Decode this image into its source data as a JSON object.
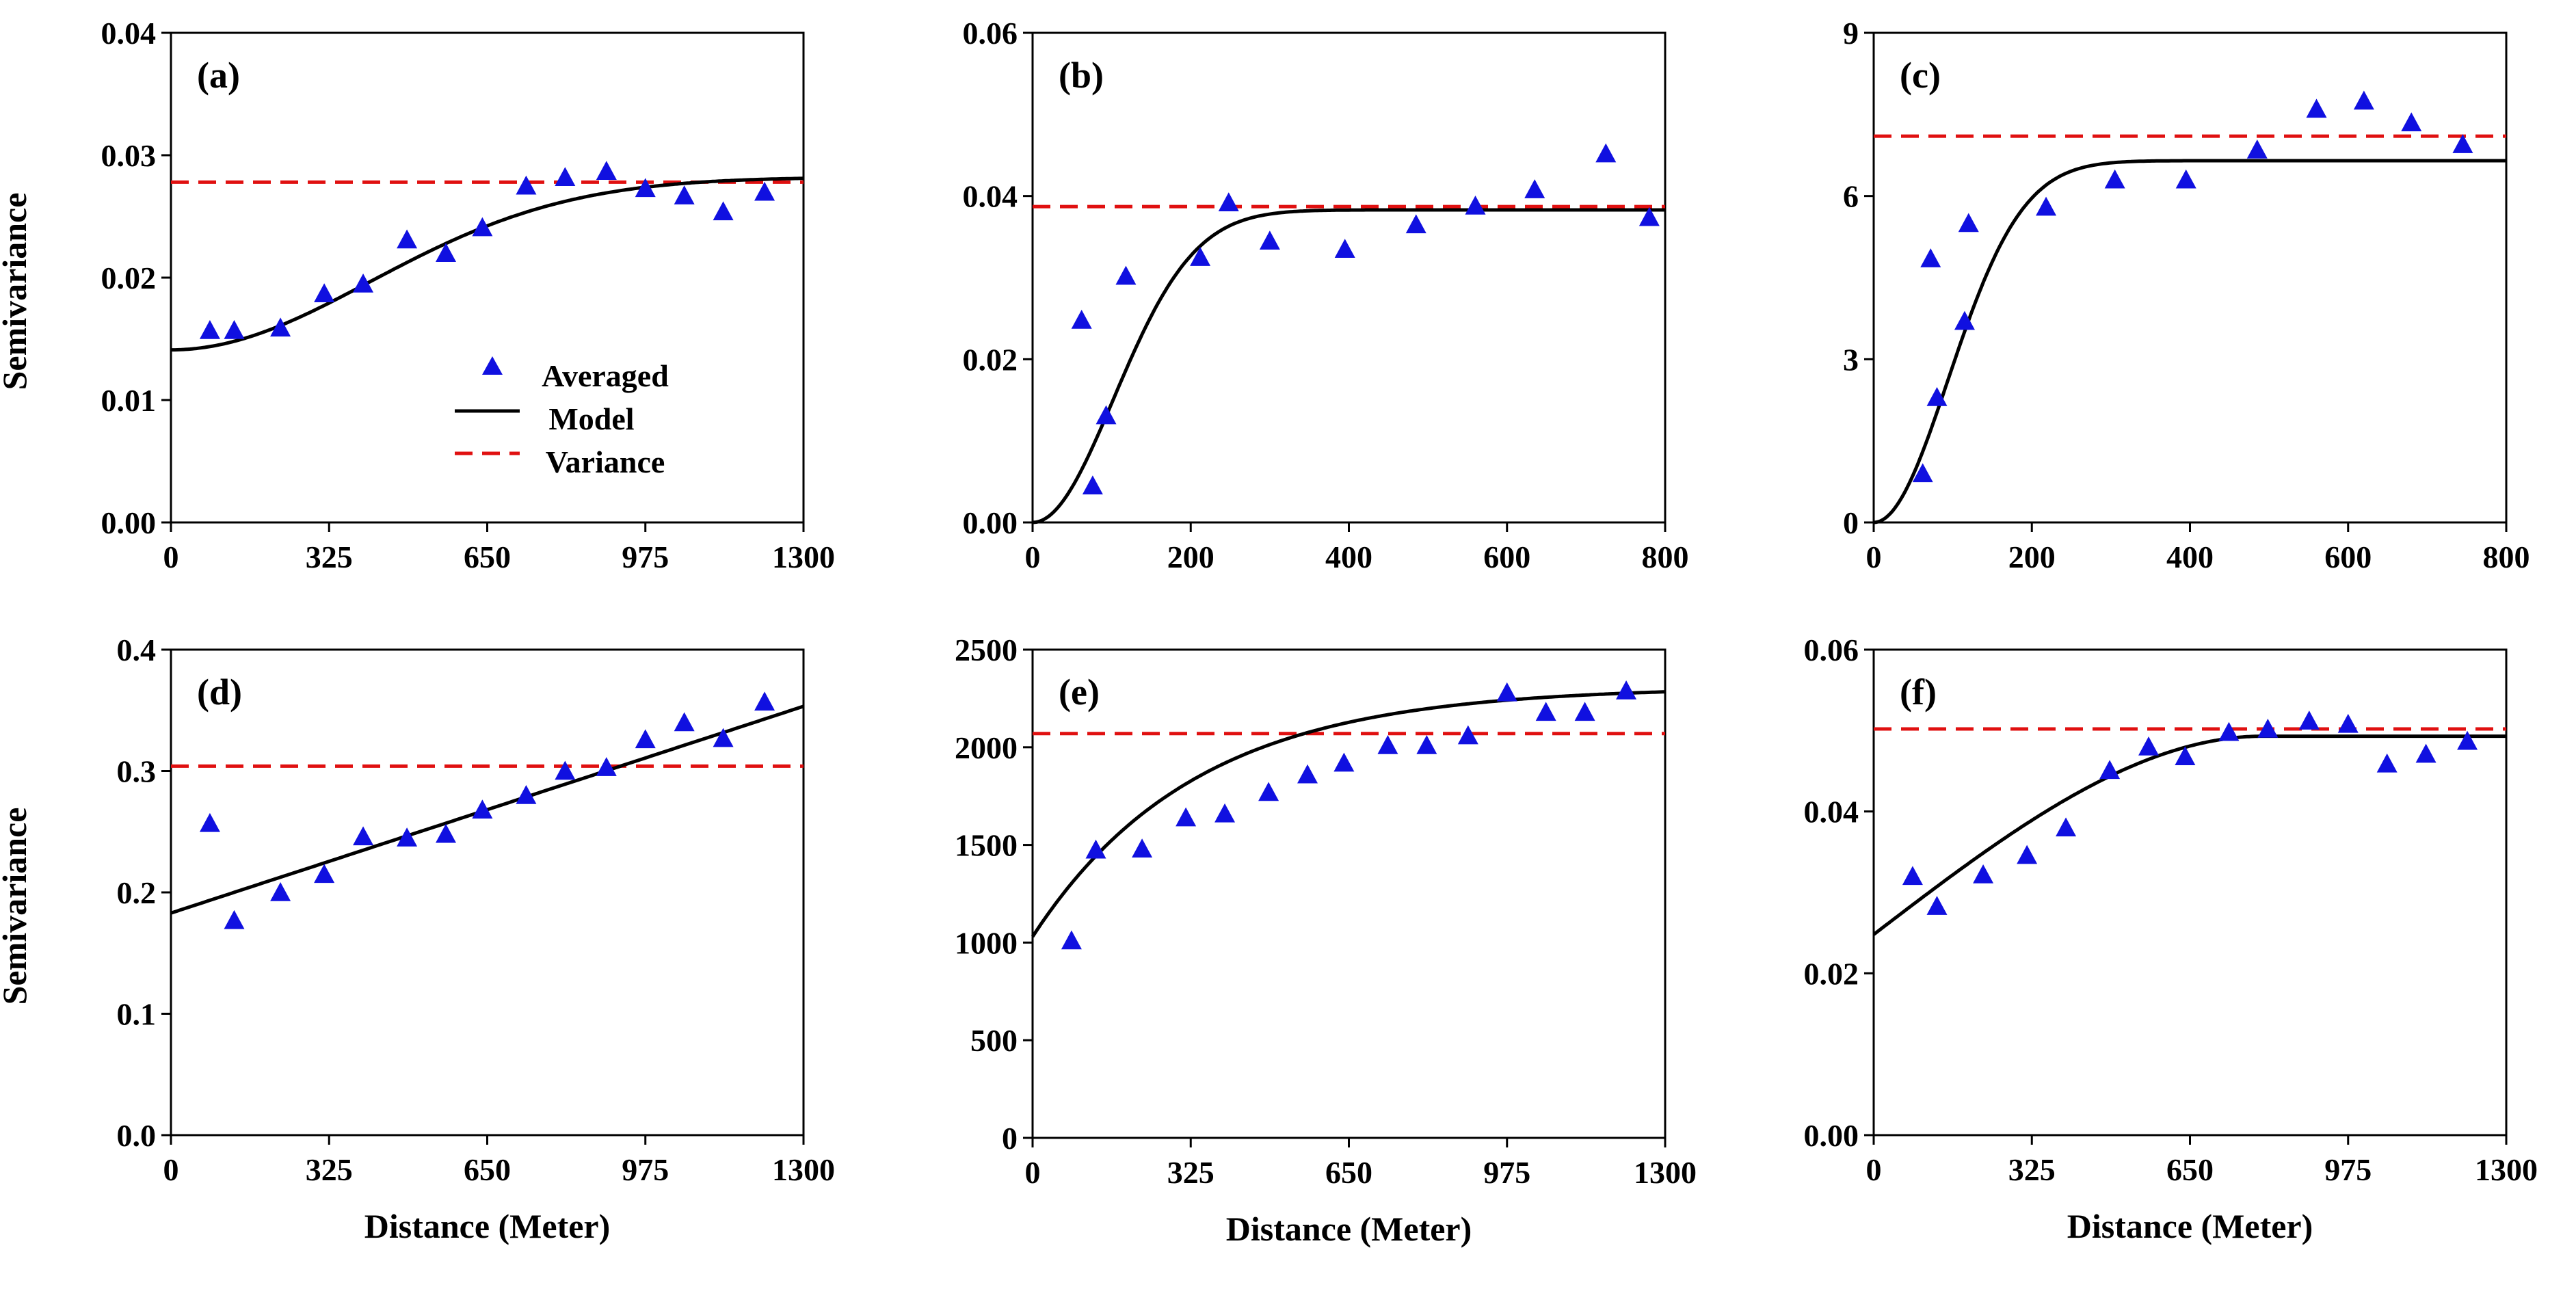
{
  "figure": {
    "colors": {
      "points": "#1010e0",
      "model": "#000000",
      "variance": "#e01010"
    },
    "legend": {
      "averaged": "Averaged",
      "model": "Model",
      "variance": "Variance"
    }
  },
  "chart_data": [
    {
      "type": "scatter",
      "label": "(a)",
      "xlabel": "",
      "ylabel": "Semivariance",
      "xlim": [
        0,
        1300
      ],
      "ylim": [
        0,
        0.04
      ],
      "xticks": [
        0,
        325,
        650,
        975,
        1300
      ],
      "xtick_labels": [
        "0",
        "325",
        "650",
        "975",
        "1300"
      ],
      "yticks": [
        0,
        0.01,
        0.02,
        0.03,
        0.04
      ],
      "ytick_labels": [
        "0.00",
        "0.01",
        "0.02",
        "0.03",
        "0.04"
      ],
      "points": {
        "x": [
          80,
          130,
          225,
          315,
          395,
          485,
          565,
          640,
          730,
          810,
          895,
          975,
          1055,
          1135,
          1220
        ],
        "y": [
          0.0157,
          0.0157,
          0.0159,
          0.0187,
          0.0195,
          0.0231,
          0.022,
          0.0241,
          0.0275,
          0.0282,
          0.0287,
          0.0273,
          0.0267,
          0.0254,
          0.027
        ]
      },
      "model": {
        "form": "gaussian",
        "nugget": 0.0141,
        "sill": 0.0282,
        "range": 1000
      },
      "variance": 0.0278,
      "legend": true
    },
    {
      "type": "scatter",
      "label": "(b)",
      "xlabel": "",
      "ylabel": "",
      "xlim": [
        0,
        800
      ],
      "ylim": [
        0,
        0.06
      ],
      "xticks": [
        0,
        200,
        400,
        600,
        800
      ],
      "xtick_labels": [
        "0",
        "200",
        "400",
        "600",
        "800"
      ],
      "yticks": [
        0,
        0.02,
        0.04,
        0.06
      ],
      "ytick_labels": [
        "0.00",
        "0.02",
        "0.04",
        "0.06"
      ],
      "points": {
        "x": [
          62,
          76,
          93,
          118,
          212,
          248,
          300,
          395,
          485,
          560,
          635,
          725,
          780
        ],
        "y": [
          0.0248,
          0.0045,
          0.0131,
          0.0302,
          0.0325,
          0.0392,
          0.0345,
          0.0335,
          0.0365,
          0.0388,
          0.0408,
          0.0452,
          0.0374
        ]
      },
      "model": {
        "form": "gaussian",
        "nugget": 0,
        "sill": 0.0383,
        "range": 250
      },
      "variance": 0.0387,
      "legend": false
    },
    {
      "type": "scatter",
      "label": "(c)",
      "xlabel": "",
      "ylabel": "",
      "xlim": [
        0,
        800
      ],
      "ylim": [
        0,
        9
      ],
      "xticks": [
        0,
        200,
        400,
        600,
        800
      ],
      "xtick_labels": [
        "0",
        "200",
        "400",
        "600",
        "800"
      ],
      "yticks": [
        0,
        3,
        6,
        9
      ],
      "ytick_labels": [
        "0",
        "3",
        "6",
        "9"
      ],
      "points": {
        "x": [
          62,
          72,
          80,
          115,
          120,
          218,
          305,
          395,
          485,
          560,
          620,
          680,
          745
        ],
        "y": [
          0.9,
          4.85,
          2.3,
          3.7,
          5.5,
          5.8,
          6.3,
          6.3,
          6.85,
          7.6,
          7.75,
          7.35,
          6.95
        ]
      },
      "model": {
        "form": "gaussian",
        "nugget": 0,
        "sill": 6.65,
        "range": 230
      },
      "variance": 7.1,
      "legend": false
    },
    {
      "type": "scatter",
      "label": "(d)",
      "xlabel": "Distance (Meter)",
      "ylabel": "Semivariance",
      "xlim": [
        0,
        1300
      ],
      "ylim": [
        0,
        0.4
      ],
      "xticks": [
        0,
        325,
        650,
        975,
        1300
      ],
      "xtick_labels": [
        "0",
        "325",
        "650",
        "975",
        "1300"
      ],
      "yticks": [
        0,
        0.1,
        0.2,
        0.3,
        0.4
      ],
      "ytick_labels": [
        "0.0",
        "0.1",
        "0.2",
        "0.3",
        "0.4"
      ],
      "points": {
        "x": [
          80,
          130,
          225,
          315,
          395,
          485,
          565,
          640,
          730,
          810,
          895,
          975,
          1055,
          1135,
          1220
        ],
        "y": [
          0.257,
          0.177,
          0.2,
          0.215,
          0.246,
          0.245,
          0.248,
          0.268,
          0.28,
          0.3,
          0.303,
          0.326,
          0.34,
          0.327,
          0.357
        ]
      },
      "model": {
        "form": "linear",
        "nugget": 0.183,
        "slope": 0.000131
      },
      "variance": 0.304,
      "legend": false
    },
    {
      "type": "scatter",
      "label": "(e)",
      "xlabel": "Distance (Meter)",
      "ylabel": "",
      "xlim": [
        0,
        1300
      ],
      "ylim": [
        0,
        2500
      ],
      "xticks": [
        0,
        325,
        650,
        975,
        1300
      ],
      "xtick_labels": [
        "0",
        "325",
        "650",
        "975",
        "1300"
      ],
      "yticks": [
        0,
        500,
        1000,
        1500,
        2000,
        2500
      ],
      "ytick_labels": [
        "0",
        "500",
        "1000",
        "1500",
        "2000",
        "2500"
      ],
      "points": {
        "x": [
          80,
          130,
          225,
          315,
          395,
          485,
          565,
          640,
          730,
          810,
          895,
          975,
          1055,
          1135,
          1220
        ],
        "y": [
          1010,
          1475,
          1480,
          1640,
          1660,
          1770,
          1860,
          1920,
          2010,
          2010,
          2060,
          2280,
          2180,
          2180,
          2290
        ]
      },
      "model": {
        "form": "exponential",
        "nugget": 1030,
        "sill": 2310,
        "range": 1000
      },
      "variance": 2070,
      "legend": false
    },
    {
      "type": "scatter",
      "label": "(f)",
      "xlabel": "Distance (Meter)",
      "ylabel": "",
      "xlim": [
        0,
        1300
      ],
      "ylim": [
        0,
        0.06
      ],
      "xticks": [
        0,
        325,
        650,
        975,
        1300
      ],
      "xtick_labels": [
        "0",
        "325",
        "650",
        "975",
        "1300"
      ],
      "yticks": [
        0,
        0.02,
        0.04,
        0.06
      ],
      "ytick_labels": [
        "0.00",
        "0.02",
        "0.04",
        "0.06"
      ],
      "points": {
        "x": [
          80,
          130,
          225,
          315,
          395,
          485,
          565,
          640,
          730,
          810,
          895,
          975,
          1055,
          1135,
          1220
        ],
        "y": [
          0.032,
          0.0283,
          0.0322,
          0.0346,
          0.038,
          0.0451,
          0.048,
          0.0468,
          0.0498,
          0.0502,
          0.0512,
          0.0508,
          0.0459,
          0.0471,
          0.0487
        ]
      },
      "model": {
        "form": "spherical",
        "nugget": 0.0248,
        "sill": 0.0493,
        "range": 800
      },
      "variance": 0.0502,
      "legend": false
    }
  ]
}
